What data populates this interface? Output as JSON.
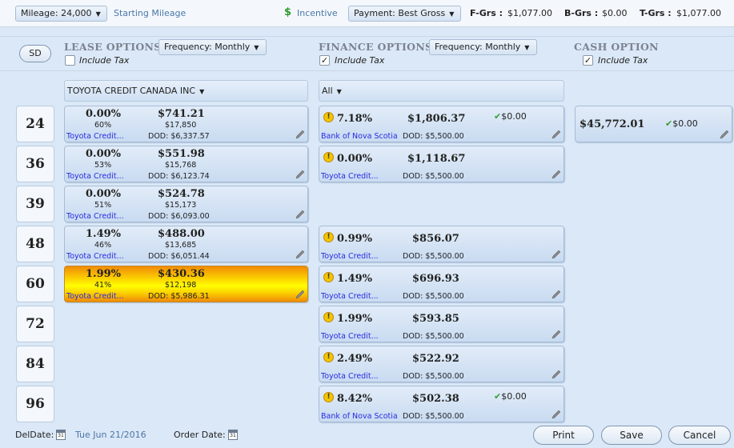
{
  "toolbar": {
    "mileage": "Mileage: 24,000",
    "starting_mileage": "Starting Mileage",
    "incentive": "Incentive",
    "payment": "Payment: Best Gross",
    "fgrs_label": "F-Grs :",
    "fgrs_value": "$1,077.00",
    "bgrs_label": "B-Grs :",
    "bgrs_value": "$0.00",
    "tgrs_label": "T-Grs :",
    "tgrs_value": "$1,077.00"
  },
  "sd_button": "SD",
  "lease": {
    "title": "LEASE OPTIONS",
    "frequency": "Frequency:  Monthly",
    "include_tax": "Include Tax",
    "include_tax_checked": false,
    "bank": "TOYOTA CREDIT CANADA INC",
    "cards": [
      {
        "rate": "0.00%",
        "payment": "$741.21",
        "pct": "60%",
        "residual": "$17,850",
        "lender": "Toyota Credit...",
        "dod": "DOD: $6,337.57"
      },
      {
        "rate": "0.00%",
        "payment": "$551.98",
        "pct": "53%",
        "residual": "$15,768",
        "lender": "Toyota Credit...",
        "dod": "DOD: $6,123.74"
      },
      {
        "rate": "0.00%",
        "payment": "$524.78",
        "pct": "51%",
        "residual": "$15,173",
        "lender": "Toyota Credit...",
        "dod": "DOD: $6,093.00"
      },
      {
        "rate": "1.49%",
        "payment": "$488.00",
        "pct": "46%",
        "residual": "$13,685",
        "lender": "Toyota Credit...",
        "dod": "DOD: $6,051.44"
      },
      {
        "rate": "1.99%",
        "payment": "$430.36",
        "pct": "41%",
        "residual": "$12,198",
        "lender": "Toyota Credit...",
        "dod": "DOD: $5,986.31"
      }
    ]
  },
  "terms": [
    "24",
    "36",
    "39",
    "48",
    "60",
    "72",
    "84",
    "96"
  ],
  "finance": {
    "title": "FINANCE OPTIONS",
    "frequency": "Frequency:  Monthly",
    "include_tax": "Include Tax",
    "include_tax_checked": true,
    "bank": "All",
    "cards": [
      {
        "rate": "7.18%",
        "payment": "$1,806.37",
        "lender": "Bank of Nova Scotia",
        "dod": "DOD: $5,500.00",
        "check": "$0.00"
      },
      {
        "rate": "0.00%",
        "payment": "$1,118.67",
        "lender": "Toyota Credit...",
        "dod": "DOD: $5,500.00"
      },
      {
        "rate": "0.99%",
        "payment": "$856.07",
        "lender": "Toyota Credit...",
        "dod": "DOD: $5,500.00"
      },
      {
        "rate": "1.49%",
        "payment": "$696.93",
        "lender": "Toyota Credit...",
        "dod": "DOD: $5,500.00"
      },
      {
        "rate": "1.99%",
        "payment": "$593.85",
        "lender": "Toyota Credit...",
        "dod": "DOD: $5,500.00"
      },
      {
        "rate": "2.49%",
        "payment": "$522.92",
        "lender": "Toyota Credit...",
        "dod": "DOD: $5,500.00"
      },
      {
        "rate": "8.42%",
        "payment": "$502.38",
        "lender": "Bank of Nova Scotia",
        "dod": "DOD: $5,500.00",
        "check": "$0.00"
      }
    ]
  },
  "cash": {
    "title": "CASH OPTION",
    "include_tax": "Include Tax",
    "include_tax_checked": true,
    "amount": "$45,772.01",
    "check": "$0.00"
  },
  "footer": {
    "del_date_label": "DelDate:",
    "del_date_value": "Tue Jun 21/2016",
    "order_date_label": "Order Date:",
    "calendar_day": "31",
    "print": "Print",
    "save": "Save",
    "cancel": "Cancel"
  },
  "colors": {
    "selected_card": "#fbd200",
    "link": "#2a2ae0",
    "check": "#3a9a3a"
  }
}
